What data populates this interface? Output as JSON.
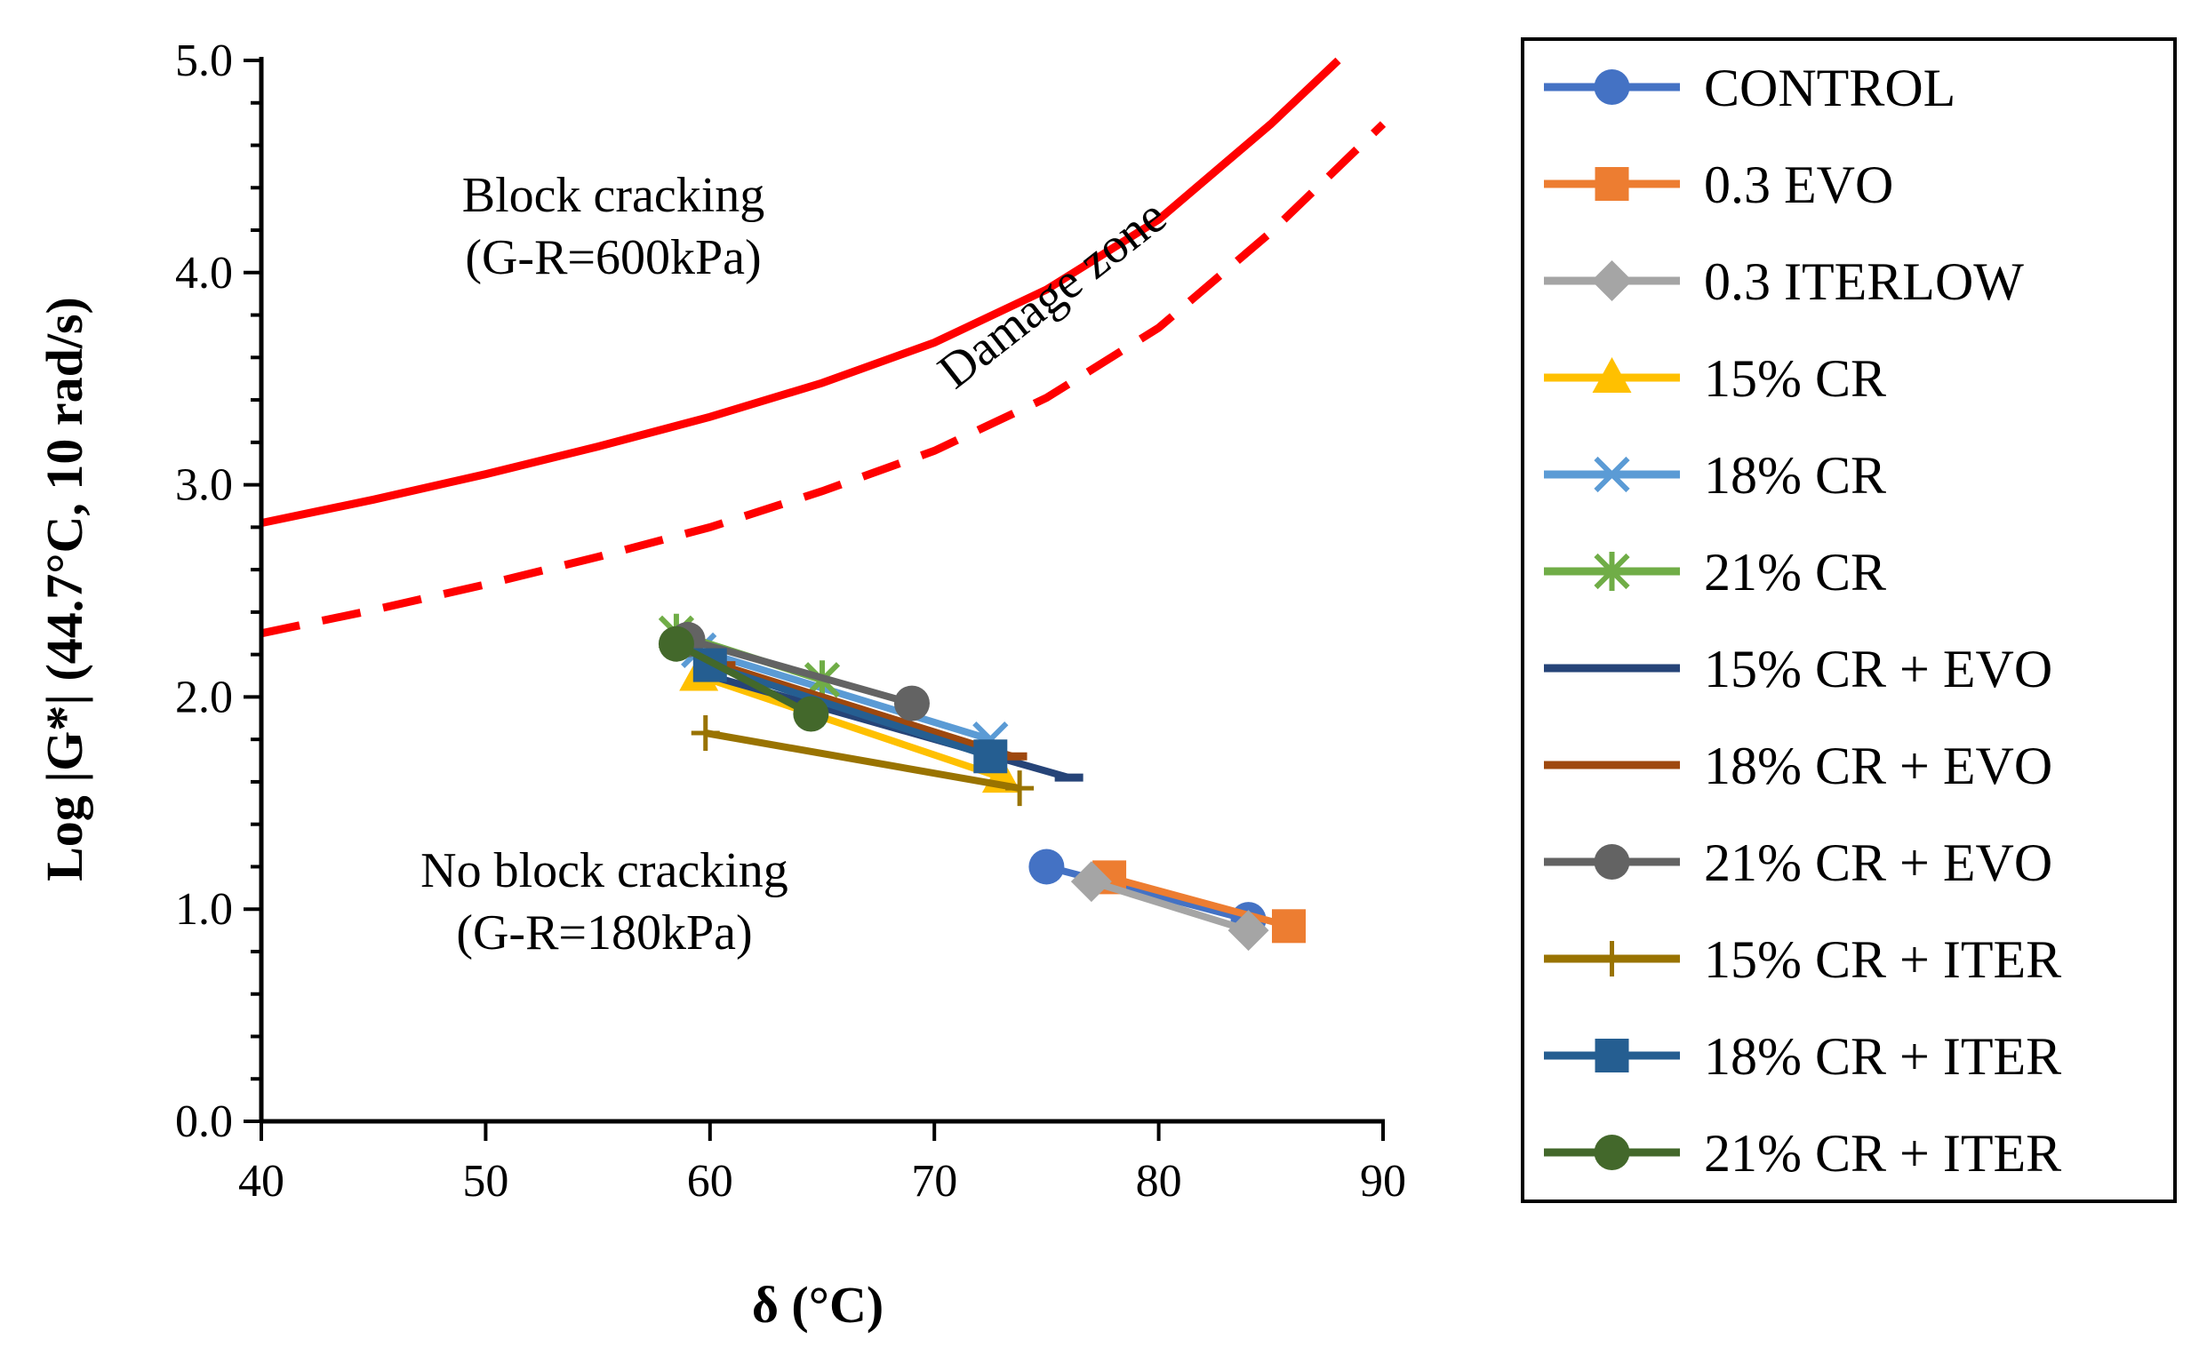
{
  "chart_data": {
    "type": "scatter",
    "title": "",
    "xlabel": "δ (°C)",
    "ylabel": "Log |G*| (44.7°C, 10 rad/s)",
    "xlim": [
      40,
      90
    ],
    "ylim": [
      0.0,
      5.0
    ],
    "xticks": [
      "40",
      "50",
      "60",
      "70",
      "80",
      "90"
    ],
    "yticks": [
      "0.0",
      "1.0",
      "2.0",
      "3.0",
      "4.0",
      "5.0"
    ],
    "grid": false,
    "legend": "right",
    "annotations": {
      "block": "Block cracking",
      "block_gr": "(G-R=600kPa)",
      "noblock": "No block cracking",
      "noblock_gr": "(G-R=180kPa)",
      "damage": "Damage zone"
    },
    "curves": {
      "block_600": {
        "color": "#ff0000",
        "dash": "solid",
        "x": [
          40,
          45,
          50,
          55,
          60,
          65,
          70,
          75,
          80,
          85,
          88
        ],
        "y": [
          2.82,
          2.93,
          3.05,
          3.18,
          3.32,
          3.48,
          3.67,
          3.92,
          4.25,
          4.7,
          5.0
        ]
      },
      "noblock_180": {
        "color": "#ff0000",
        "dash": "dashed",
        "x": [
          40,
          45,
          50,
          55,
          60,
          65,
          70,
          75,
          80,
          85,
          90
        ],
        "y": [
          2.3,
          2.41,
          2.53,
          2.66,
          2.8,
          2.97,
          3.16,
          3.41,
          3.74,
          4.19,
          4.7
        ]
      }
    },
    "series": [
      {
        "name": "CONTROL",
        "color": "#4472c4",
        "marker": "circle",
        "x": [
          75.0,
          84.0
        ],
        "y": [
          1.2,
          0.95
        ]
      },
      {
        "name": "0.3 EVO",
        "color": "#ed7d31",
        "marker": "square",
        "x": [
          77.8,
          85.8
        ],
        "y": [
          1.15,
          0.92
        ]
      },
      {
        "name": "0.3 ITERLOW",
        "color": "#a5a5a5",
        "marker": "diamond",
        "x": [
          77.0,
          84.0
        ],
        "y": [
          1.13,
          0.9
        ]
      },
      {
        "name": "15% CR",
        "color": "#ffc000",
        "marker": "triangle",
        "x": [
          59.5,
          73.0
        ],
        "y": [
          2.1,
          1.62
        ]
      },
      {
        "name": "18% CR",
        "color": "#5b9bd5",
        "marker": "x",
        "x": [
          59.5,
          72.5
        ],
        "y": [
          2.22,
          1.8
        ]
      },
      {
        "name": "21% CR",
        "color": "#70ad47",
        "marker": "star",
        "x": [
          58.5,
          65.0
        ],
        "y": [
          2.3,
          2.08
        ]
      },
      {
        "name": "15% CR + EVO",
        "color": "#264478",
        "marker": "dash",
        "x": [
          60.0,
          76.0
        ],
        "y": [
          2.1,
          1.62
        ]
      },
      {
        "name": "18% CR + EVO",
        "color": "#9e480e",
        "marker": "dash",
        "x": [
          60.5,
          73.5
        ],
        "y": [
          2.15,
          1.72
        ]
      },
      {
        "name": "21% CR + EVO",
        "color": "#636363",
        "marker": "circle",
        "x": [
          59.0,
          69.0
        ],
        "y": [
          2.27,
          1.97
        ]
      },
      {
        "name": "15% CR + ITER",
        "color": "#997300",
        "marker": "plus",
        "x": [
          59.8,
          73.8
        ],
        "y": [
          1.83,
          1.57
        ]
      },
      {
        "name": "18% CR + ITER",
        "color": "#255e91",
        "marker": "square",
        "x": [
          60.0,
          72.5
        ],
        "y": [
          2.15,
          1.72
        ]
      },
      {
        "name": "21% CR + ITER",
        "color": "#43682b",
        "marker": "circle",
        "x": [
          58.5,
          64.5
        ],
        "y": [
          2.25,
          1.92
        ]
      }
    ]
  }
}
